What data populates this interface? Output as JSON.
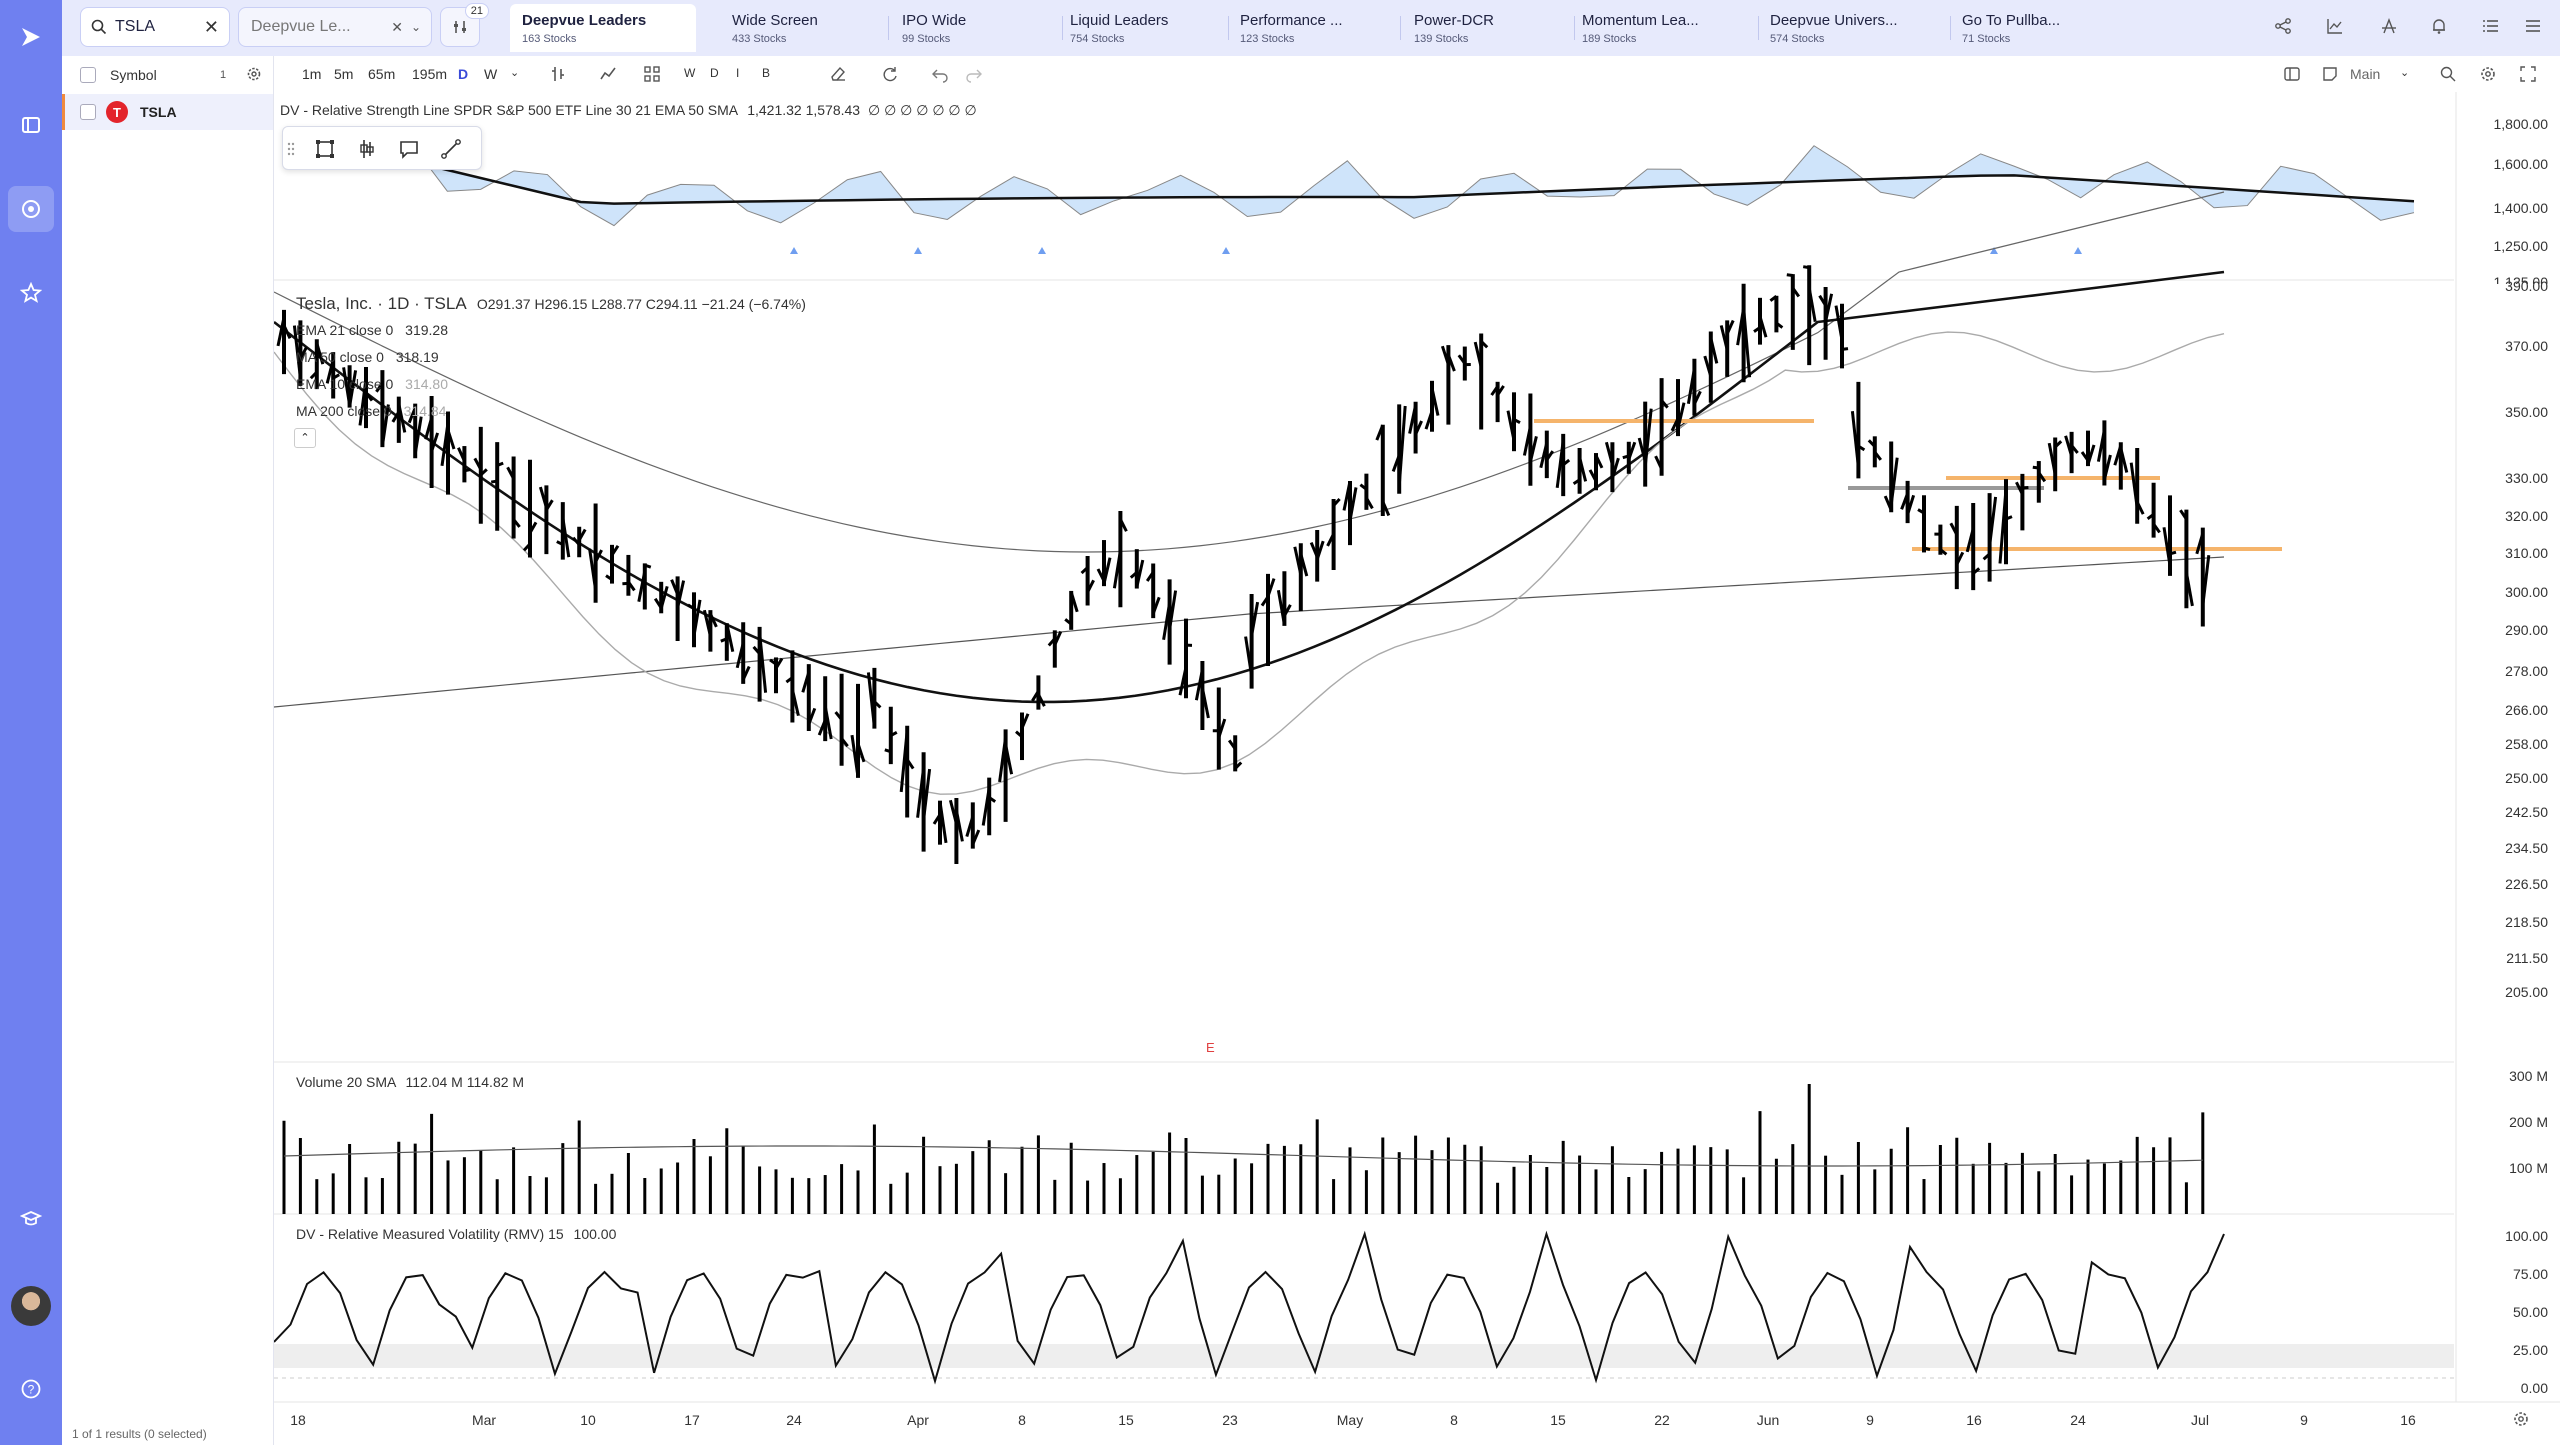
{
  "search": {
    "value": "TSLA",
    "list_value": "Deepvue Le...",
    "filter_count": "21"
  },
  "tabs": [
    {
      "label": "Deepvue Leaders",
      "count": "163 Stocks"
    },
    {
      "label": "Wide Screen",
      "count": "433 Stocks"
    },
    {
      "label": "IPO Wide",
      "count": "99 Stocks"
    },
    {
      "label": "Liquid Leaders",
      "count": "754 Stocks"
    },
    {
      "label": "Performance ...",
      "count": "123 Stocks"
    },
    {
      "label": "Power-DCR",
      "count": "139 Stocks"
    },
    {
      "label": "Momentum Lea...",
      "count": "189 Stocks"
    },
    {
      "label": "Deepvue Univers...",
      "count": "574 Stocks"
    },
    {
      "label": "Go To Pullba...",
      "count": "71 Stocks"
    }
  ],
  "symbol_panel": {
    "header": "Symbol",
    "badge": "1",
    "symbol": "TSLA",
    "footer": "1 of 1 results (0 selected)"
  },
  "toolbar": {
    "timeframes": [
      "1m",
      "5m",
      "65m",
      "195m",
      "D",
      "W"
    ],
    "letters": [
      "W",
      "D",
      "I",
      "B"
    ],
    "layout": "Main"
  },
  "rs_line": {
    "legend": "DV - Relative Strength Line SPDR S&P 500 ETF Line 30 21 EMA 50 SMA",
    "values": "1,421.32  1,578.43",
    "dots": "∅ ∅ ∅ ∅ ∅ ∅ ∅",
    "axis": [
      "1,800.00",
      "1,600.00",
      "1,400.00",
      "1,250.00",
      "1,125.00"
    ]
  },
  "price": {
    "title": "Tesla, Inc. · 1D · TSLA",
    "ohlc": "O291.37  H296.15  L288.77  C294.11  −21.24 (−6.74%)",
    "ema21": "EMA 21 close 0",
    "ema21_val": "319.28",
    "ma50": "MA 50 close 0",
    "ma50_val": "318.19",
    "ema10": "EMA 10 close 0",
    "ema10_val": "314.80",
    "ma200": "MA 200 close 0",
    "ma200_val": "314.84",
    "earnings_marker": "E",
    "axis": [
      "390.00",
      "370.00",
      "350.00",
      "330.00",
      "320.00",
      "310.00",
      "300.00",
      "290.00",
      "278.00",
      "266.00",
      "258.00",
      "250.00",
      "242.50",
      "234.50",
      "226.50",
      "218.50",
      "211.50",
      "205.00"
    ]
  },
  "volume": {
    "legend": "Volume 20 SMA",
    "values": "112.04 M  114.82 M",
    "axis": [
      "300 M",
      "200 M",
      "100 M"
    ]
  },
  "rmv": {
    "legend": "DV - Relative Measured Volatility (RMV) 15",
    "value": "100.00",
    "axis": [
      "100.00",
      "75.00",
      "50.00",
      "25.00",
      "0.00"
    ]
  },
  "dates": [
    "18",
    "Mar",
    "10",
    "17",
    "24",
    "Apr",
    "8",
    "15",
    "23",
    "May",
    "8",
    "15",
    "22",
    "Jun",
    "9",
    "16",
    "24",
    "Jul",
    "9",
    "16"
  ],
  "colors": {
    "accent": "#6f80f0",
    "rs_fill": "#a8cdf5",
    "level_orange": "#f5b46b",
    "level_gray": "#999999"
  }
}
